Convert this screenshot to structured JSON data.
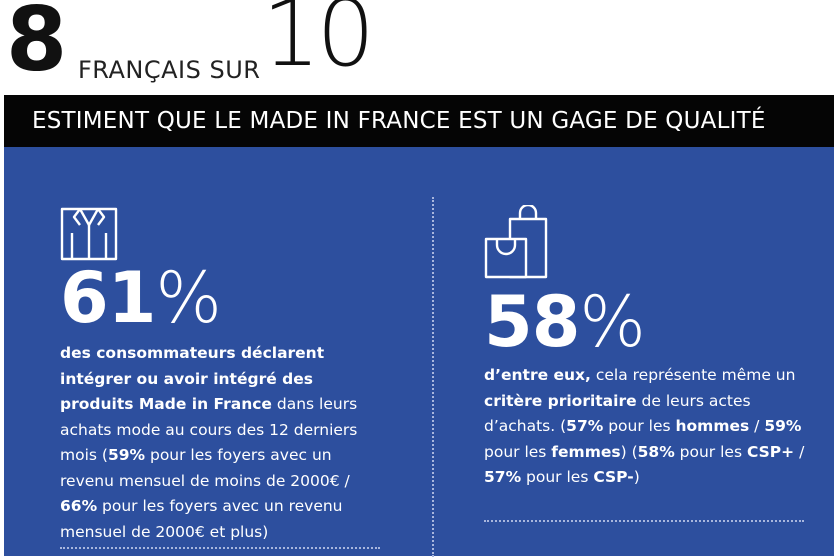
{
  "headline": {
    "big_number": "8",
    "middle_text": "FRANÇAIS SUR",
    "denominator": "10"
  },
  "banner": {
    "text": "ESTIMENT QUE LE MADE IN FRANCE EST UN GAGE DE QUALITÉ"
  },
  "stats": [
    {
      "icon": "shirt-icon",
      "value": "61",
      "unit": "%",
      "text": [
        {
          "t": "des consommateurs déclarent intégrer ou avoir intégré des produits Made in France",
          "b": true
        },
        {
          "t": " dans leurs achats mode au cours des 12 derniers mois (",
          "b": false
        },
        {
          "t": "59%",
          "b": true
        },
        {
          "t": " pour les foyers avec un revenu mensuel de moins de 2000€ / ",
          "b": false
        },
        {
          "t": "66%",
          "b": true
        },
        {
          "t": " pour les foyers avec un revenu mensuel de 2000€ et plus)",
          "b": false
        }
      ]
    },
    {
      "icon": "shopping-bags-icon",
      "value": "58",
      "unit": "%",
      "text": [
        {
          "t": "d’entre eux,",
          "b": true
        },
        {
          "t": " cela représente même un ",
          "b": false
        },
        {
          "t": "critère prioritaire",
          "b": true
        },
        {
          "t": " de leurs actes d’achats. (",
          "b": false
        },
        {
          "t": "57%",
          "b": true
        },
        {
          "t": " pour les ",
          "b": false
        },
        {
          "t": "hommes",
          "b": true
        },
        {
          "t": " / ",
          "b": false
        },
        {
          "t": "59%",
          "b": true
        },
        {
          "t": " pour les ",
          "b": false
        },
        {
          "t": "femmes",
          "b": true
        },
        {
          "t": ") (",
          "b": false
        },
        {
          "t": "58%",
          "b": true
        },
        {
          "t": " pour les ",
          "b": false
        },
        {
          "t": "CSP+",
          "b": true
        },
        {
          "t": " / ",
          "b": false
        },
        {
          "t": "57%",
          "b": true
        },
        {
          "t": " pour les ",
          "b": false
        },
        {
          "t": "CSP-",
          "b": true
        },
        {
          "t": ")",
          "b": false
        }
      ]
    }
  ],
  "colors": {
    "panel": "#2d4f9e",
    "banner": "#050505",
    "text_on_panel": "#ffffff"
  }
}
